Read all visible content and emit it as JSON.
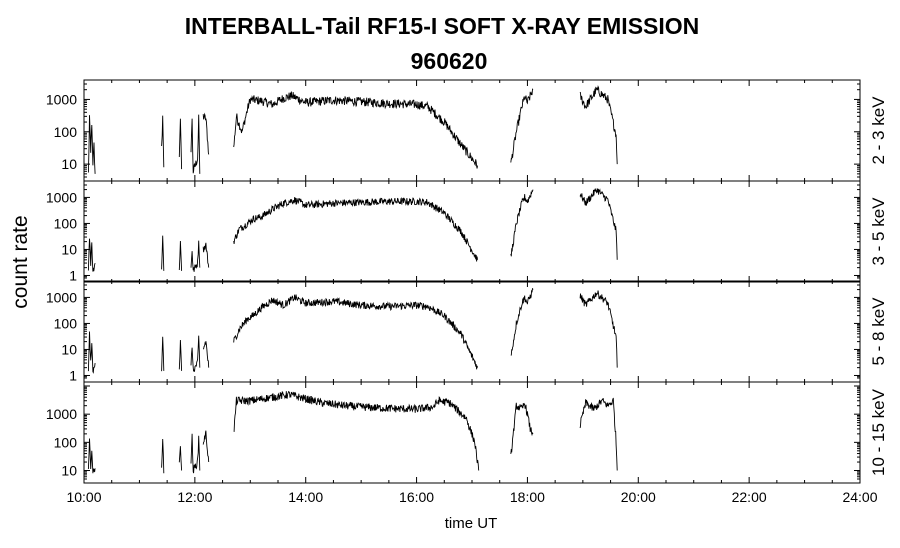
{
  "chart_data": {
    "type": "line",
    "title": "INTERBALL-Tail RF15-I SOFT X-RAY EMISSION",
    "subtitle": "960620",
    "xlabel": "time UT",
    "ylabel": "count rate",
    "x_range_hours": [
      10,
      24
    ],
    "x_ticks": [
      "10:00",
      "12:00",
      "14:00",
      "16:00",
      "18:00",
      "20:00",
      "22:00",
      "24:00"
    ],
    "y_scale": "log",
    "grid": false,
    "panels": [
      {
        "band": "2 - 3 keV",
        "ylim": [
          4,
          3000
        ],
        "y_ticks": [
          "10",
          "100",
          "1000"
        ],
        "segments": [
          [
            [
              10.08,
              5
            ],
            [
              10.1,
              300
            ],
            [
              10.12,
              20
            ],
            [
              10.14,
              200
            ],
            [
              10.16,
              8
            ],
            [
              10.18,
              40
            ],
            [
              10.2,
              5
            ]
          ],
          [
            [
              11.4,
              30
            ],
            [
              11.42,
              300
            ],
            [
              11.44,
              8
            ]
          ],
          [
            [
              11.72,
              20
            ],
            [
              11.74,
              200
            ],
            [
              11.76,
              7
            ]
          ],
          [
            [
              11.93,
              30
            ],
            [
              11.95,
              220
            ],
            [
              11.97,
              6
            ],
            [
              12.05,
              15
            ],
            [
              12.07,
              250
            ],
            [
              12.09,
              5
            ]
          ],
          [
            [
              12.15,
              300
            ],
            [
              12.2,
              250
            ],
            [
              12.25,
              20
            ]
          ],
          [
            [
              12.7,
              30
            ],
            [
              12.75,
              300
            ],
            [
              12.85,
              100
            ],
            [
              12.95,
              500
            ],
            [
              13.0,
              1000
            ],
            [
              13.2,
              900
            ],
            [
              13.4,
              700
            ],
            [
              13.6,
              1100
            ],
            [
              13.75,
              1300
            ],
            [
              14.0,
              800
            ],
            [
              14.5,
              950
            ],
            [
              15.0,
              850
            ],
            [
              15.5,
              750
            ],
            [
              16.0,
              700
            ],
            [
              16.2,
              600
            ],
            [
              16.5,
              200
            ],
            [
              16.8,
              40
            ],
            [
              17.1,
              9
            ]
          ],
          [
            [
              17.7,
              10
            ],
            [
              17.8,
              100
            ],
            [
              17.9,
              600
            ],
            [
              17.95,
              1200
            ],
            [
              18.0,
              800
            ],
            [
              18.1,
              2000
            ]
          ],
          [
            [
              18.95,
              1300
            ],
            [
              19.05,
              600
            ],
            [
              19.25,
              2000
            ],
            [
              19.45,
              1000
            ],
            [
              19.6,
              80
            ],
            [
              19.62,
              10
            ]
          ]
        ]
      },
      {
        "band": "3 - 5 keV",
        "ylim": [
          0.8,
          3000
        ],
        "y_ticks": [
          "1",
          "10",
          "100",
          "1000"
        ],
        "segments": [
          [
            [
              10.08,
              2
            ],
            [
              10.1,
              30
            ],
            [
              10.12,
              3
            ],
            [
              10.14,
              20
            ],
            [
              10.16,
              1.5
            ],
            [
              10.2,
              3
            ]
          ],
          [
            [
              11.4,
              2
            ],
            [
              11.42,
              30
            ],
            [
              11.44,
              1.5
            ]
          ],
          [
            [
              11.72,
              2
            ],
            [
              11.74,
              20
            ],
            [
              11.76,
              1.5
            ]
          ],
          [
            [
              11.93,
              2
            ],
            [
              11.95,
              10
            ],
            [
              11.97,
              1.5
            ],
            [
              12.05,
              3
            ],
            [
              12.07,
              25
            ],
            [
              12.09,
              2
            ]
          ],
          [
            [
              12.15,
              10
            ],
            [
              12.2,
              15
            ],
            [
              12.25,
              2
            ]
          ],
          [
            [
              12.7,
              20
            ],
            [
              12.8,
              60
            ],
            [
              12.95,
              100
            ],
            [
              13.05,
              150
            ],
            [
              13.2,
              180
            ],
            [
              13.4,
              350
            ],
            [
              13.6,
              600
            ],
            [
              13.8,
              800
            ],
            [
              14.0,
              500
            ],
            [
              14.5,
              600
            ],
            [
              15.0,
              650
            ],
            [
              15.5,
              700
            ],
            [
              16.0,
              700
            ],
            [
              16.2,
              650
            ],
            [
              16.5,
              250
            ],
            [
              16.8,
              50
            ],
            [
              17.1,
              4
            ]
          ],
          [
            [
              17.7,
              5
            ],
            [
              17.8,
              100
            ],
            [
              17.9,
              600
            ],
            [
              17.95,
              1000
            ],
            [
              18.0,
              700
            ],
            [
              18.1,
              2000
            ]
          ],
          [
            [
              18.95,
              1400
            ],
            [
              19.05,
              600
            ],
            [
              19.25,
              2000
            ],
            [
              19.45,
              800
            ],
            [
              19.6,
              50
            ],
            [
              19.62,
              4
            ]
          ]
        ]
      },
      {
        "band": "5 - 8 keV",
        "ylim": [
          0.8,
          3000
        ],
        "y_ticks": [
          "1",
          "10",
          "100",
          "1000"
        ],
        "segments": [
          [
            [
              10.08,
              2
            ],
            [
              10.1,
              40
            ],
            [
              10.12,
              3
            ],
            [
              10.14,
              20
            ],
            [
              10.16,
              1.2
            ],
            [
              10.2,
              3
            ]
          ],
          [
            [
              11.4,
              2
            ],
            [
              11.42,
              40
            ],
            [
              11.44,
              1.5
            ]
          ],
          [
            [
              11.72,
              2
            ],
            [
              11.74,
              20
            ],
            [
              11.76,
              1.5
            ]
          ],
          [
            [
              11.93,
              2
            ],
            [
              11.95,
              15
            ],
            [
              11.97,
              1.5
            ],
            [
              12.05,
              3
            ],
            [
              12.07,
              30
            ],
            [
              12.09,
              2
            ]
          ],
          [
            [
              12.15,
              10
            ],
            [
              12.2,
              20
            ],
            [
              12.25,
              2
            ]
          ],
          [
            [
              12.7,
              20
            ],
            [
              12.8,
              60
            ],
            [
              12.95,
              150
            ],
            [
              13.05,
              200
            ],
            [
              13.2,
              400
            ],
            [
              13.4,
              800
            ],
            [
              13.6,
              500
            ],
            [
              13.8,
              1000
            ],
            [
              14.0,
              600
            ],
            [
              14.5,
              700
            ],
            [
              15.0,
              500
            ],
            [
              15.5,
              450
            ],
            [
              16.0,
              500
            ],
            [
              16.2,
              450
            ],
            [
              16.5,
              200
            ],
            [
              16.8,
              40
            ],
            [
              17.1,
              2
            ]
          ],
          [
            [
              17.7,
              5
            ],
            [
              17.8,
              100
            ],
            [
              17.9,
              600
            ],
            [
              17.95,
              1000
            ],
            [
              18.0,
              600
            ],
            [
              18.1,
              2000
            ]
          ],
          [
            [
              18.95,
              1200
            ],
            [
              19.05,
              500
            ],
            [
              19.25,
              1500
            ],
            [
              19.45,
              600
            ],
            [
              19.6,
              30
            ],
            [
              19.62,
              2
            ]
          ]
        ]
      },
      {
        "band": "10 - 15 keV",
        "ylim": [
          5,
          10000
        ],
        "y_ticks": [
          "10",
          "100",
          "1000"
        ],
        "segments": [
          [
            [
              10.08,
              10
            ],
            [
              10.1,
              100
            ],
            [
              10.12,
              15
            ],
            [
              10.14,
              60
            ],
            [
              10.16,
              8
            ],
            [
              10.2,
              12
            ]
          ],
          [
            [
              11.4,
              15
            ],
            [
              11.42,
              150
            ],
            [
              11.44,
              8
            ]
          ],
          [
            [
              11.72,
              15
            ],
            [
              11.74,
              100
            ],
            [
              11.76,
              10
            ]
          ],
          [
            [
              11.93,
              20
            ],
            [
              11.95,
              150
            ],
            [
              11.97,
              10
            ],
            [
              12.05,
              20
            ],
            [
              12.07,
              150
            ],
            [
              12.09,
              10
            ]
          ],
          [
            [
              12.15,
              100
            ],
            [
              12.2,
              200
            ],
            [
              12.25,
              20
            ]
          ],
          [
            [
              12.7,
              200
            ],
            [
              12.75,
              3000
            ],
            [
              13.0,
              3000
            ],
            [
              13.4,
              4000
            ],
            [
              13.7,
              5000
            ],
            [
              14.0,
              3500
            ],
            [
              14.3,
              2500
            ],
            [
              14.7,
              2000
            ],
            [
              15.0,
              1800
            ],
            [
              15.5,
              1600
            ],
            [
              16.0,
              1500
            ],
            [
              16.3,
              1800
            ],
            [
              16.4,
              3000
            ],
            [
              16.6,
              2500
            ],
            [
              16.9,
              700
            ],
            [
              17.05,
              100
            ],
            [
              17.12,
              10
            ]
          ],
          [
            [
              17.7,
              30
            ],
            [
              17.8,
              2000
            ],
            [
              17.9,
              1500
            ],
            [
              17.95,
              2500
            ],
            [
              18.0,
              1000
            ],
            [
              18.05,
              300
            ],
            [
              18.1,
              200
            ]
          ],
          [
            [
              18.95,
              400
            ],
            [
              19.05,
              2500
            ],
            [
              19.2,
              1500
            ],
            [
              19.35,
              3000
            ],
            [
              19.45,
              2000
            ],
            [
              19.55,
              3000
            ],
            [
              19.6,
              100
            ],
            [
              19.62,
              10
            ]
          ]
        ]
      }
    ]
  }
}
